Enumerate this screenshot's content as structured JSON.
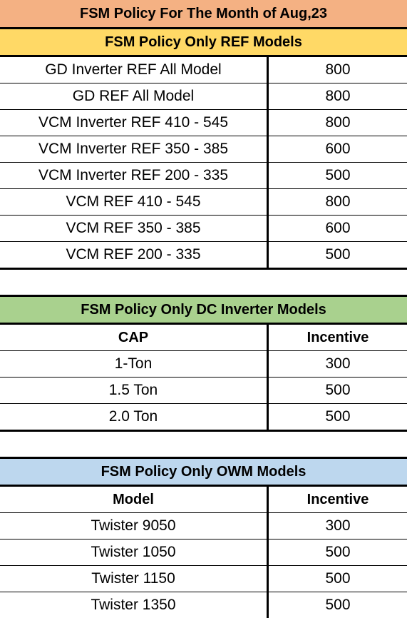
{
  "page_title": "FSM Policy For The Month of Aug,23",
  "ref_section": {
    "title": "FSM Policy Only REF Models",
    "rows": [
      {
        "model": "GD Inverter REF All Model",
        "value": "800"
      },
      {
        "model": "GD REF All Model",
        "value": "800"
      },
      {
        "model": "VCM Inverter REF 410 - 545",
        "value": "800"
      },
      {
        "model": "VCM Inverter REF 350 - 385",
        "value": "600"
      },
      {
        "model": "VCM Inverter REF 200 - 335",
        "value": "500"
      },
      {
        "model": "VCM REF 410 - 545",
        "value": "800"
      },
      {
        "model": "VCM REF 350 - 385",
        "value": "600"
      },
      {
        "model": "VCM REF 200 - 335",
        "value": "500"
      }
    ]
  },
  "dc_section": {
    "title": "FSM Policy Only DC Inverter Models",
    "header": {
      "col1": "CAP",
      "col2": "Incentive"
    },
    "rows": [
      {
        "model": "1-Ton",
        "value": "300"
      },
      {
        "model": "1.5 Ton",
        "value": "500"
      },
      {
        "model": "2.0 Ton",
        "value": "500"
      }
    ]
  },
  "owm_section": {
    "title": "FSM Policy Only OWM Models",
    "header": {
      "col1": "Model",
      "col2": "Incentive"
    },
    "rows": [
      {
        "model": "Twister 9050",
        "value": "300"
      },
      {
        "model": "Twister 1050",
        "value": "500"
      },
      {
        "model": "Twister 1150",
        "value": "500"
      },
      {
        "model": "Twister 1350",
        "value": "500"
      }
    ]
  }
}
